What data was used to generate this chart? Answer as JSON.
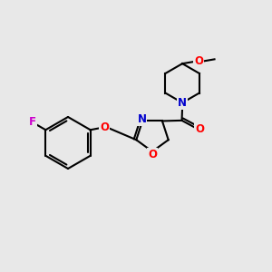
{
  "bg_color": "#e8e8e8",
  "bond_color": "#000000",
  "bond_width": 1.5,
  "atom_colors": {
    "N": "#0000cd",
    "O": "#ff0000",
    "F": "#cc00cc",
    "C": "#000000"
  },
  "figsize": [
    3.0,
    3.0
  ],
  "dpi": 100
}
